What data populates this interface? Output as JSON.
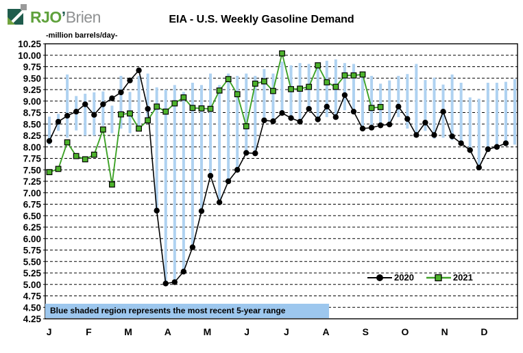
{
  "logo": {
    "rjo": "RJO",
    "apostrophe": "’",
    "brien": "Brien"
  },
  "header": {
    "title": "EIA - U.S. Weekly Gasoline Demand"
  },
  "axis": {
    "unit_label": "-million barrels/day-"
  },
  "note": {
    "text": "Blue shaded region represents the most recent 5-year range"
  },
  "chart_data": {
    "type": "line",
    "title": "EIA - U.S. Weekly Gasoline Demand",
    "ylabel": "-million barrels/day-",
    "ylim": [
      4.25,
      10.25
    ],
    "ytick_step": 0.25,
    "grid": "dashed-horizontal",
    "legend_position": "inside-bottom-right",
    "x_months": [
      "J",
      "F",
      "M",
      "A",
      "M",
      "J",
      "J",
      "A",
      "S",
      "O",
      "N",
      "D"
    ],
    "weeks": 53,
    "colors": {
      "range_bar": "#afd2f1",
      "series_2020": "#000000",
      "series_2021_line": "#3da226",
      "series_2021_fill": "#4db32c",
      "note_bg": "#9dc7ee"
    },
    "range_note": "Blue shaded region represents the most recent 5-year range",
    "five_year_range": [
      [
        8.05,
        8.66
      ],
      [
        8.35,
        8.72
      ],
      [
        8.2,
        9.58
      ],
      [
        8.36,
        9.11
      ],
      [
        8.25,
        9.16
      ],
      [
        8.25,
        9.19
      ],
      [
        8.46,
        9.21
      ],
      [
        8.3,
        8.9
      ],
      [
        8.4,
        9.55
      ],
      [
        8.3,
        9.2
      ],
      [
        8.35,
        9.55
      ],
      [
        8.6,
        9.6
      ],
      [
        6.61,
        9.3
      ],
      [
        5.02,
        9.25
      ],
      [
        5.05,
        9.35
      ],
      [
        5.28,
        9.2
      ],
      [
        5.81,
        9.4
      ],
      [
        6.6,
        9.35
      ],
      [
        7.37,
        9.6
      ],
      [
        6.79,
        9.35
      ],
      [
        7.25,
        9.6
      ],
      [
        7.5,
        9.55
      ],
      [
        7.87,
        9.6
      ],
      [
        7.86,
        9.55
      ],
      [
        8.58,
        9.7
      ],
      [
        8.56,
        9.6
      ],
      [
        8.74,
        9.86
      ],
      [
        8.63,
        9.78
      ],
      [
        8.55,
        9.83
      ],
      [
        8.83,
        9.81
      ],
      [
        8.6,
        9.75
      ],
      [
        8.65,
        9.88
      ],
      [
        8.65,
        9.91
      ],
      [
        8.8,
        9.83
      ],
      [
        8.77,
        9.81
      ],
      [
        8.4,
        9.61
      ],
      [
        8.42,
        9.55
      ],
      [
        8.47,
        9.38
      ],
      [
        8.49,
        9.45
      ],
      [
        8.65,
        9.55
      ],
      [
        8.4,
        9.59
      ],
      [
        8.26,
        9.81
      ],
      [
        8.35,
        9.46
      ],
      [
        8.18,
        9.51
      ],
      [
        8.2,
        9.36
      ],
      [
        8.15,
        9.58
      ],
      [
        8.08,
        9.4
      ],
      [
        7.93,
        9.08
      ],
      [
        7.55,
        9.05
      ],
      [
        7.95,
        9.4
      ],
      [
        8.0,
        9.4
      ],
      [
        8.02,
        9.42
      ],
      [
        8.05,
        9.48
      ]
    ],
    "series": [
      {
        "name": "2020",
        "marker": "circle",
        "values": [
          8.13,
          8.55,
          8.68,
          8.77,
          8.93,
          8.7,
          8.93,
          9.06,
          9.19,
          9.45,
          9.67,
          8.83,
          6.61,
          5.02,
          5.05,
          5.28,
          5.81,
          6.6,
          7.37,
          6.79,
          7.25,
          7.5,
          7.87,
          7.86,
          8.58,
          8.56,
          8.74,
          8.63,
          8.55,
          8.83,
          8.6,
          8.88,
          8.65,
          9.13,
          8.77,
          8.4,
          8.42,
          8.47,
          8.49,
          8.88,
          8.61,
          8.26,
          8.53,
          8.26,
          8.77,
          8.23,
          8.08,
          7.93,
          7.55,
          7.95,
          8.0,
          8.08
        ]
      },
      {
        "name": "2021",
        "marker": "square",
        "values": [
          7.45,
          7.52,
          8.1,
          7.8,
          7.73,
          7.83,
          8.38,
          7.18,
          8.71,
          8.73,
          8.4,
          8.58,
          8.88,
          8.77,
          8.95,
          9.08,
          8.85,
          8.84,
          8.83,
          9.23,
          9.48,
          9.15,
          8.45,
          9.38,
          9.43,
          9.22,
          10.04,
          9.26,
          9.27,
          9.31,
          9.78,
          9.41,
          9.31,
          9.56,
          9.56,
          9.58,
          8.85,
          8.87
        ]
      }
    ]
  }
}
